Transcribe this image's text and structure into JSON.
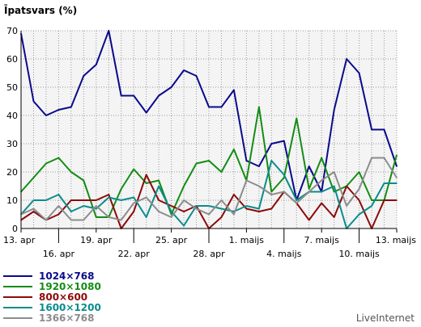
{
  "chart_data": {
    "type": "line",
    "title": "Īpatsvars (%)",
    "ylim": [
      0,
      70
    ],
    "yticks": [
      0,
      10,
      20,
      30,
      40,
      50,
      60,
      70
    ],
    "x": [
      "13. apr",
      "14. apr",
      "15. apr",
      "16. apr",
      "17. apr",
      "18. apr",
      "19. apr",
      "20. apr",
      "21. apr",
      "22. apr",
      "23. apr",
      "24. apr",
      "25. apr",
      "26. apr",
      "27. apr",
      "28. apr",
      "29. apr",
      "30. apr",
      "1. maijs",
      "2. maijs",
      "3. maijs",
      "4. maijs",
      "5. maijs",
      "6. maijs",
      "7. maijs",
      "8. maijs",
      "9. maijs",
      "10. maijs",
      "11. maijs",
      "12. maijs",
      "13. maijs"
    ],
    "xticks": [
      {
        "index": 0,
        "label": "13. apr",
        "row": 0
      },
      {
        "index": 3,
        "label": "16. apr",
        "row": 1
      },
      {
        "index": 6,
        "label": "19. apr",
        "row": 0
      },
      {
        "index": 9,
        "label": "22. apr",
        "row": 1
      },
      {
        "index": 12,
        "label": "25. apr",
        "row": 0
      },
      {
        "index": 15,
        "label": "28. apr",
        "row": 1
      },
      {
        "index": 18,
        "label": "1. maijs",
        "row": 0
      },
      {
        "index": 21,
        "label": "4. maijs",
        "row": 1
      },
      {
        "index": 24,
        "label": "7. maijs",
        "row": 0
      },
      {
        "index": 27,
        "label": "10. maijs",
        "row": 1
      },
      {
        "index": 30,
        "label": "13. maijs",
        "row": 0
      }
    ],
    "grid": true,
    "series": [
      {
        "name": "1024×768",
        "color": "#0a0a8c",
        "values": [
          69,
          45,
          40,
          42,
          43,
          54,
          58,
          70,
          47,
          47,
          41,
          47,
          50,
          56,
          54,
          43,
          43,
          49,
          24,
          22,
          30,
          31,
          10,
          22,
          13,
          42,
          60,
          55,
          35,
          35,
          22
        ]
      },
      {
        "name": "1920×1080",
        "color": "#148c14",
        "values": [
          13,
          18,
          23,
          25,
          20,
          17,
          4,
          4,
          14,
          21,
          16,
          17,
          5,
          15,
          23,
          24,
          20,
          28,
          17,
          43,
          13,
          18,
          39,
          14,
          25,
          13,
          15,
          20,
          10,
          10,
          26
        ]
      },
      {
        "name": "800×600",
        "color": "#8c0a0a",
        "values": [
          3,
          6,
          3,
          5,
          10,
          10,
          10,
          12,
          0,
          6,
          19,
          10,
          8,
          6,
          8,
          0,
          4,
          12,
          7,
          6,
          7,
          13,
          9,
          3,
          9,
          4,
          15,
          10,
          0,
          10,
          10
        ]
      },
      {
        "name": "1600×1200",
        "color": "#0a8c8c",
        "values": [
          5,
          10,
          10,
          12,
          6,
          8,
          7,
          11,
          10,
          11,
          4,
          15,
          6,
          1,
          8,
          8,
          7,
          6,
          8,
          7,
          24,
          19,
          10,
          13,
          13,
          15,
          0,
          5,
          8,
          16,
          16
        ]
      },
      {
        "name": "1366×768",
        "color": "#8c8c8c",
        "values": [
          5,
          7,
          3,
          8,
          3,
          3,
          8,
          4,
          3,
          9,
          11,
          6,
          4,
          10,
          7,
          5,
          10,
          5,
          17,
          15,
          12,
          13,
          9,
          13,
          17,
          20,
          8,
          14,
          25,
          25,
          18
        ]
      }
    ]
  },
  "brand": "LiveInternet"
}
